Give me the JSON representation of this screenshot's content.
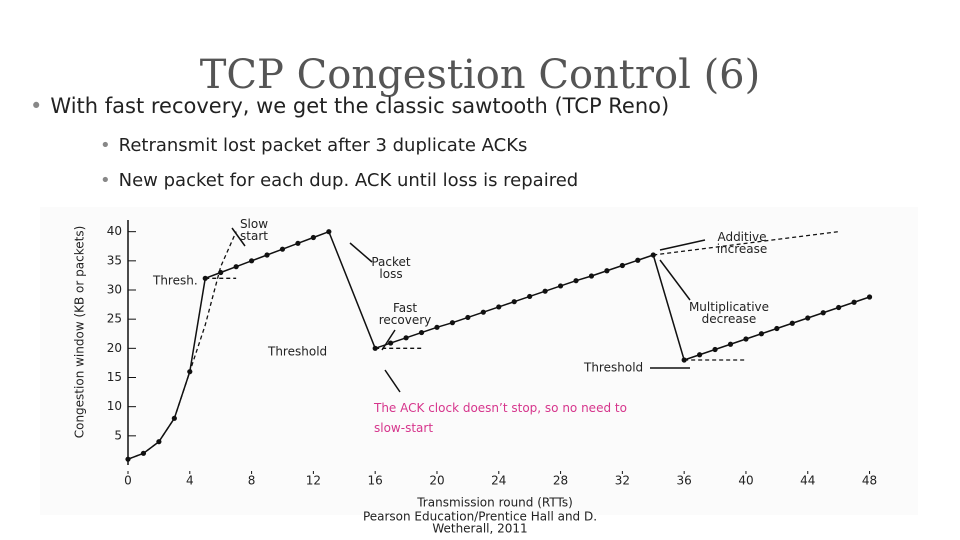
{
  "header": {
    "title": "TCP Congestion Control (6)"
  },
  "bullets": [
    "With fast recovery, we get the classic sawtooth (TCP Reno)"
  ],
  "sub_bullets": [
    "Retransmit lost packet after 3 duplicate ACKs",
    "New packet for each dup. ACK until loss is repaired"
  ],
  "footer": [
    "Pearson Education/Prentice Hall and D.",
    "Wetherall, 2011"
  ],
  "chart_data": {
    "type": "line",
    "x_label": "Transmission round (RTTs)",
    "y_label": "Congestion window (KB or packets)",
    "xlim": [
      0,
      49
    ],
    "ylim": [
      0,
      42
    ],
    "xticks": [
      0,
      4,
      8,
      12,
      16,
      20,
      24,
      28,
      32,
      36,
      40,
      44,
      48
    ],
    "yticks": [
      5,
      10,
      15,
      20,
      25,
      30,
      35,
      40
    ],
    "series": [
      {
        "color": "#111",
        "dashed": false,
        "markers": true,
        "x": [
          0,
          1,
          2,
          3,
          4,
          5,
          6,
          7,
          8,
          9,
          10,
          11,
          12,
          13,
          16,
          17,
          18,
          19,
          20,
          21,
          22,
          23,
          24,
          25,
          26,
          27,
          28,
          29,
          30,
          31,
          32,
          33,
          34,
          36,
          37,
          38,
          39,
          40,
          41,
          42,
          43,
          44,
          45,
          46,
          47,
          48
        ],
        "values": [
          1,
          2,
          4,
          8,
          16,
          32,
          33,
          34,
          35,
          36,
          37,
          38,
          39,
          40,
          20,
          20.9,
          21.8,
          22.7,
          23.6,
          24.4,
          25.3,
          26.2,
          27.1,
          28,
          28.9,
          29.8,
          30.7,
          31.6,
          32.4,
          33.3,
          34.2,
          35.1,
          36,
          18,
          18.9,
          19.8,
          20.7,
          21.6,
          22.5,
          23.4,
          24.3,
          25.2,
          26.1,
          27,
          27.9,
          28.8
        ]
      },
      {
        "color": "#111",
        "dashed": true,
        "markers": false,
        "x": [
          0,
          1,
          2,
          3,
          4,
          5,
          6,
          7,
          null,
          34,
          46
        ],
        "values": [
          1,
          2,
          4,
          8,
          16,
          24,
          34,
          40,
          null,
          36,
          40
        ]
      },
      {
        "color": "#111",
        "dashed": true,
        "markers": false,
        "x": [
          5,
          7
        ],
        "values": [
          32,
          32
        ]
      },
      {
        "color": "#111",
        "dashed": true,
        "markers": false,
        "x": [
          16,
          19
        ],
        "values": [
          20,
          20
        ]
      },
      {
        "color": "#111",
        "dashed": true,
        "markers": false,
        "x": [
          36,
          40
        ],
        "values": [
          18,
          18
        ]
      }
    ],
    "annotations": [
      "Slow start",
      "Packet loss",
      "Fast recovery",
      "Additive increase",
      "Multiplicative decrease",
      "Thresh.",
      "Threshold",
      "Threshold",
      "The ACK clock doesn’t stop, so no need to slow-start"
    ]
  }
}
